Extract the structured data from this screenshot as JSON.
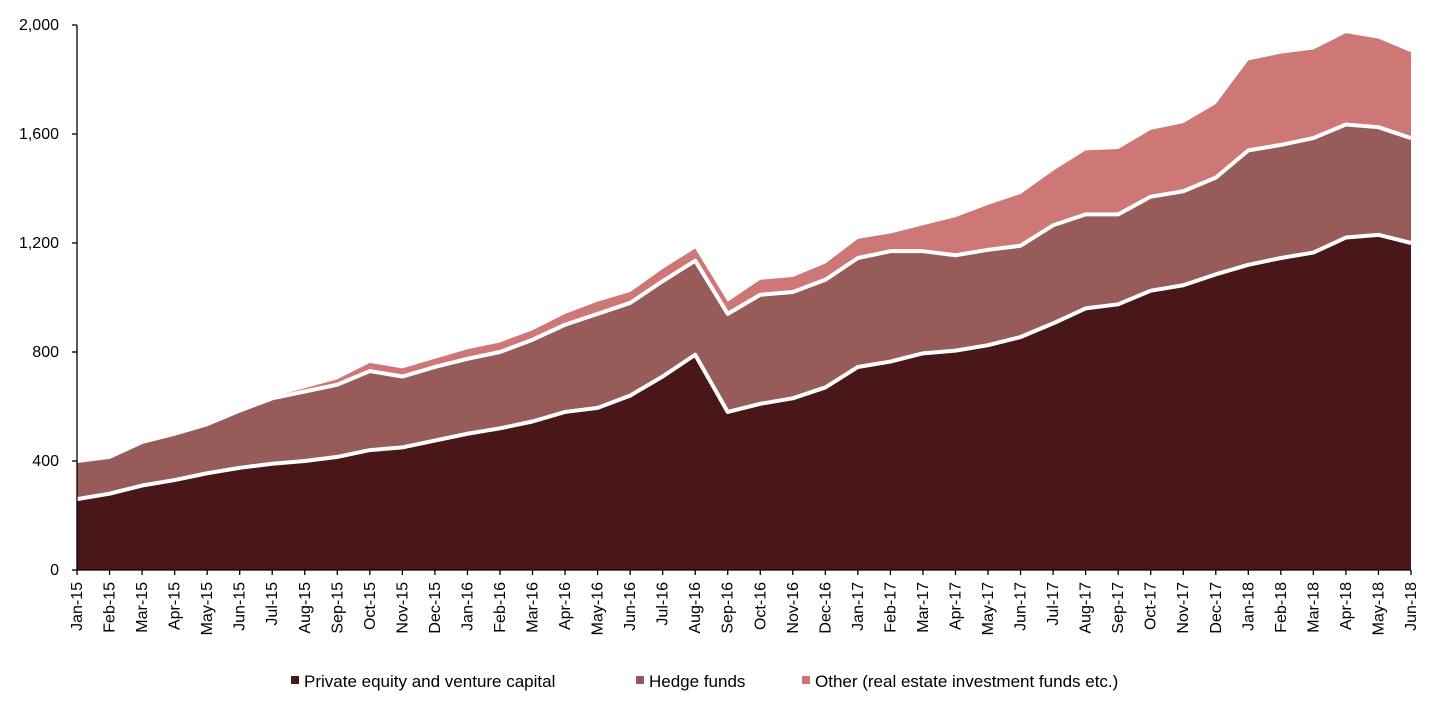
{
  "chart_data": {
    "type": "area",
    "stacked": true,
    "title": "",
    "xlabel": "",
    "ylabel": "",
    "ylim": [
      0,
      2000
    ],
    "yticks": [
      0,
      400,
      800,
      1200,
      1600,
      2000
    ],
    "ytick_labels": [
      "0",
      "400",
      "800",
      "1,200",
      "1,600",
      "2,000"
    ],
    "grid": false,
    "legend_position": "bottom",
    "categories": [
      "Jan-15",
      "Feb-15",
      "Mar-15",
      "Apr-15",
      "May-15",
      "Jun-15",
      "Jul-15",
      "Aug-15",
      "Sep-15",
      "Oct-15",
      "Nov-15",
      "Dec-15",
      "Jan-16",
      "Feb-16",
      "Mar-16",
      "Apr-16",
      "May-16",
      "Jun-16",
      "Jul-16",
      "Aug-16",
      "Sep-16",
      "Oct-16",
      "Nov-16",
      "Dec-16",
      "Jan-17",
      "Feb-17",
      "Mar-17",
      "Apr-17",
      "May-17",
      "Jun-17",
      "Jul-17",
      "Aug-17",
      "Sep-17",
      "Oct-17",
      "Nov-17",
      "Dec-17",
      "Jan-18",
      "Feb-18",
      "Mar-18",
      "Apr-18",
      "May-18",
      "Jun-18"
    ],
    "series": [
      {
        "name": "Private equity and venture capital",
        "color": "#4a1719",
        "values": [
          260,
          280,
          310,
          330,
          355,
          375,
          390,
          400,
          415,
          440,
          450,
          475,
          500,
          520,
          545,
          580,
          595,
          640,
          710,
          790,
          580,
          610,
          630,
          670,
          745,
          765,
          795,
          805,
          825,
          855,
          905,
          960,
          975,
          1025,
          1045,
          1085,
          1120,
          1145,
          1165,
          1220,
          1230,
          1200
        ]
      },
      {
        "name": "Hedge funds",
        "color": "#975b5a",
        "values": [
          140,
          135,
          160,
          170,
          180,
          210,
          240,
          255,
          265,
          290,
          260,
          270,
          275,
          280,
          300,
          320,
          345,
          340,
          350,
          345,
          360,
          400,
          390,
          395,
          400,
          405,
          375,
          350,
          350,
          335,
          360,
          345,
          330,
          345,
          345,
          355,
          420,
          415,
          420,
          415,
          395,
          385
        ]
      },
      {
        "name": "Other (real estate investment funds etc.)",
        "color": "#cd7877",
        "values": [
          0,
          0,
          0,
          0,
          0,
          0,
          5,
          12,
          20,
          30,
          30,
          30,
          35,
          35,
          35,
          40,
          45,
          40,
          45,
          45,
          45,
          55,
          55,
          60,
          70,
          65,
          95,
          140,
          165,
          190,
          200,
          235,
          240,
          245,
          250,
          270,
          330,
          335,
          325,
          335,
          325,
          315
        ]
      }
    ]
  }
}
